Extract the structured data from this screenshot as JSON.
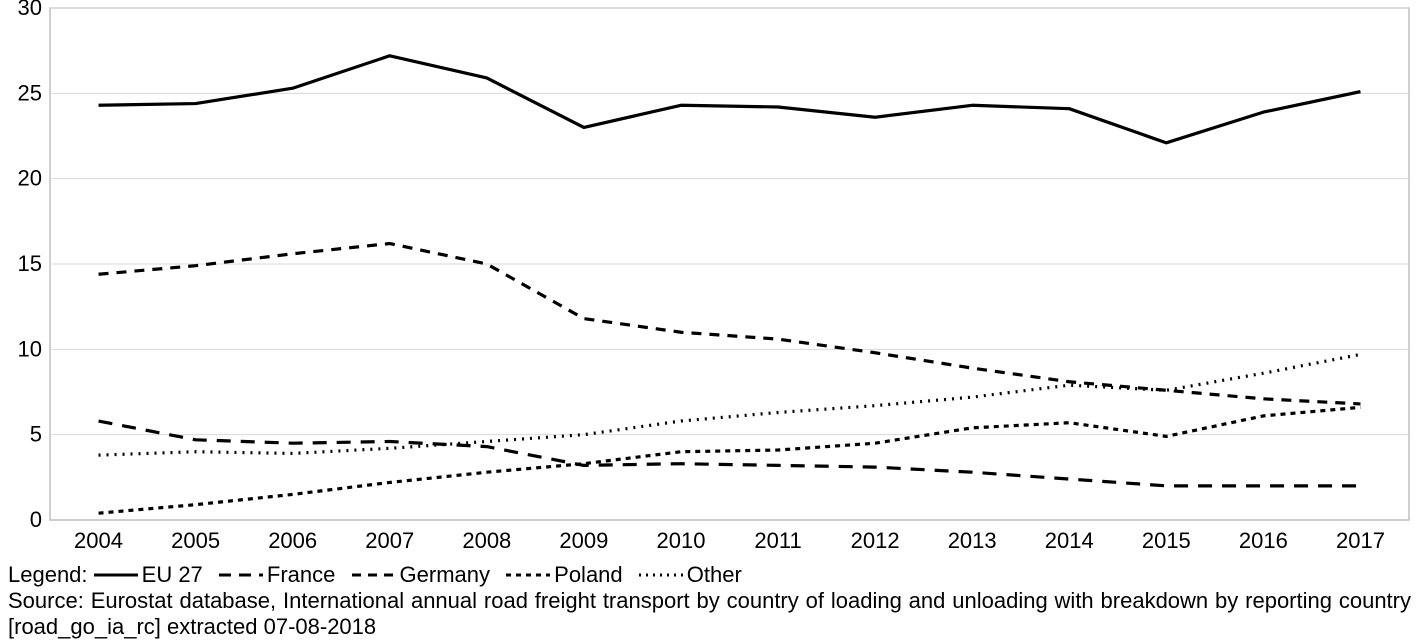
{
  "chart": {
    "type": "line",
    "background_color": "#ffffff",
    "border_color": "#bfbfbf",
    "grid_color": "#d9d9d9",
    "x_categories": [
      "2004",
      "2005",
      "2006",
      "2007",
      "2008",
      "2009",
      "2010",
      "2011",
      "2012",
      "2013",
      "2014",
      "2015",
      "2016",
      "2017"
    ],
    "ylim": [
      0,
      30
    ],
    "ytick_step": 5,
    "yticks": [
      "0",
      "5",
      "10",
      "15",
      "20",
      "25",
      "30"
    ],
    "axis_fontsize": 22,
    "series": [
      {
        "name": "EU 27",
        "style": "solid",
        "dash": "",
        "width": 3.2,
        "color": "#000000",
        "values": [
          24.3,
          24.4,
          25.3,
          27.2,
          25.9,
          23.0,
          24.3,
          24.2,
          23.6,
          24.3,
          24.1,
          22.1,
          23.9,
          25.1
        ]
      },
      {
        "name": "France",
        "style": "long-dash",
        "dash": "14 10",
        "width": 3.2,
        "color": "#000000",
        "values": [
          5.8,
          4.7,
          4.5,
          4.6,
          4.3,
          3.2,
          3.3,
          3.2,
          3.1,
          2.8,
          2.4,
          2.0,
          2.0,
          2.0
        ]
      },
      {
        "name": "Germany",
        "style": "medium-dash",
        "dash": "10 8",
        "width": 3.2,
        "color": "#000000",
        "values": [
          14.4,
          14.9,
          15.6,
          16.2,
          15.0,
          11.8,
          11.0,
          10.6,
          9.8,
          8.9,
          8.1,
          7.6,
          7.1,
          6.8
        ]
      },
      {
        "name": "Poland",
        "style": "short-dash",
        "dash": "5 5",
        "width": 3.2,
        "color": "#000000",
        "values": [
          0.4,
          0.9,
          1.5,
          2.2,
          2.8,
          3.3,
          4.0,
          4.1,
          4.5,
          5.4,
          5.7,
          4.9,
          6.1,
          6.6
        ]
      },
      {
        "name": "Other",
        "style": "dotted",
        "dash": "2 6",
        "width": 3.2,
        "color": "#000000",
        "values": [
          3.8,
          4.0,
          3.9,
          4.2,
          4.6,
          5.0,
          5.8,
          6.3,
          6.7,
          7.2,
          7.9,
          7.6,
          8.6,
          9.7
        ]
      }
    ]
  },
  "legend": {
    "prefix": "Legend:",
    "items": [
      {
        "name": "EU 27",
        "dash": ""
      },
      {
        "name": "France",
        "dash": "12 8"
      },
      {
        "name": "Germany",
        "dash": "9 7"
      },
      {
        "name": "Poland",
        "dash": "5 5"
      },
      {
        "name": "Other",
        "dash": "2 5"
      }
    ]
  },
  "source_text": "Source: Eurostat database, International annual road freight transport by country of loading and unloading with breakdown by reporting country [road_go_ia_rc] extracted 07-08-2018"
}
